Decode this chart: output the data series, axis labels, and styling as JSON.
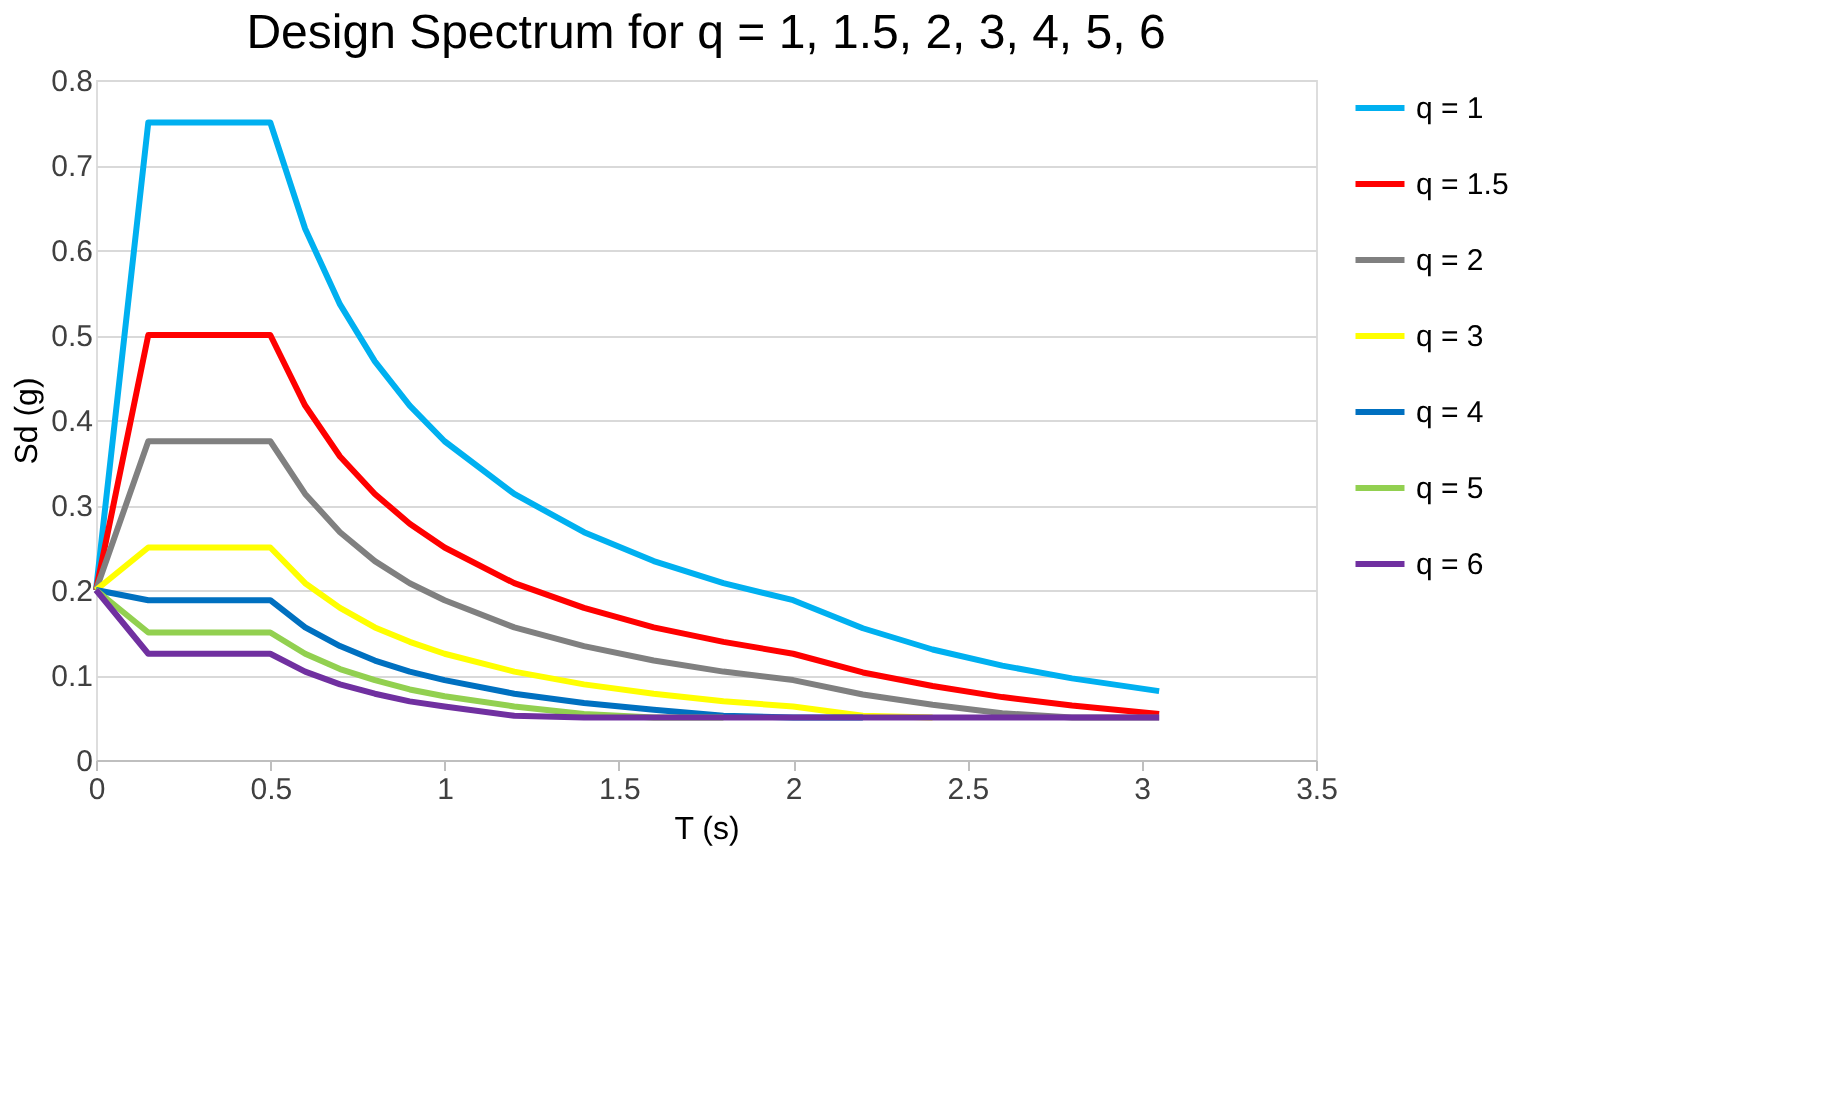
{
  "chart_data": {
    "type": "line",
    "title": "Design Spectrum for q = 1, 1.5, 2, 3, 4, 5, 6",
    "xlabel": "T (s)",
    "ylabel": "Sd (g)",
    "x": [
      0,
      0.15,
      0.5,
      0.6,
      0.7,
      0.8,
      0.9,
      1.0,
      1.2,
      1.4,
      1.6,
      1.8,
      2.0,
      2.2,
      2.4,
      2.6,
      2.8,
      3.05
    ],
    "series": [
      {
        "name": "q = 1",
        "color": "#00b0f0",
        "values": [
          0.2,
          0.75,
          0.75,
          0.625,
          0.536,
          0.469,
          0.417,
          0.375,
          0.313,
          0.268,
          0.234,
          0.208,
          0.188,
          0.155,
          0.13,
          0.111,
          0.096,
          0.081
        ]
      },
      {
        "name": "q = 1.5",
        "color": "#ff0000",
        "values": [
          0.2,
          0.5,
          0.5,
          0.417,
          0.357,
          0.313,
          0.278,
          0.25,
          0.208,
          0.179,
          0.156,
          0.139,
          0.125,
          0.103,
          0.087,
          0.074,
          0.064,
          0.054
        ]
      },
      {
        "name": "q = 2",
        "color": "#808080",
        "values": [
          0.2,
          0.375,
          0.375,
          0.313,
          0.268,
          0.234,
          0.208,
          0.188,
          0.156,
          0.134,
          0.117,
          0.104,
          0.094,
          0.077,
          0.065,
          0.055,
          0.05,
          0.05
        ]
      },
      {
        "name": "q = 3",
        "color": "#ffff00",
        "values": [
          0.2,
          0.25,
          0.25,
          0.208,
          0.179,
          0.156,
          0.139,
          0.125,
          0.104,
          0.089,
          0.078,
          0.069,
          0.063,
          0.052,
          0.05,
          null,
          null,
          null
        ]
      },
      {
        "name": "q = 4",
        "color": "#0070c0",
        "values": [
          0.2,
          0.188,
          0.188,
          0.156,
          0.134,
          0.117,
          0.104,
          0.094,
          0.078,
          0.067,
          0.059,
          0.052,
          0.05,
          0.05,
          null,
          null,
          null,
          null
        ]
      },
      {
        "name": "q = 5",
        "color": "#92d050",
        "values": [
          0.2,
          0.15,
          0.15,
          0.125,
          0.107,
          0.094,
          0.083,
          0.075,
          0.063,
          0.054,
          0.05,
          0.05,
          null,
          null,
          null,
          null,
          null,
          null
        ]
      },
      {
        "name": "q = 6",
        "color": "#7030a0",
        "values": [
          0.2,
          0.125,
          0.125,
          0.104,
          0.089,
          0.078,
          0.069,
          0.063,
          0.052,
          0.05,
          0.05,
          0.05,
          0.05,
          0.05,
          0.05,
          0.05,
          0.05,
          0.05
        ]
      }
    ],
    "xlim": [
      0,
      3.5
    ],
    "xticks": [
      0,
      0.5,
      1,
      1.5,
      2,
      2.5,
      3,
      3.5
    ],
    "ylim": [
      0,
      0.8
    ],
    "yticks": [
      0,
      0.1,
      0.2,
      0.3,
      0.4,
      0.5,
      0.6,
      0.7,
      0.8
    ],
    "grid": "y",
    "legend": "right",
    "marker": "none",
    "line_style": "solid"
  }
}
